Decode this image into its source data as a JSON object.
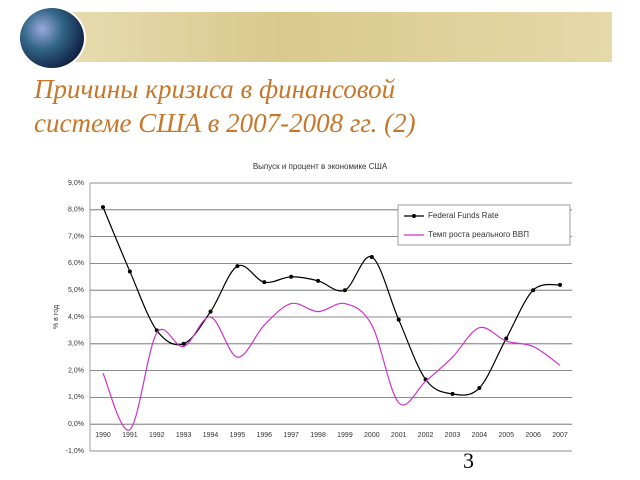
{
  "slide": {
    "title": [
      "Причины кризиса в финансовой",
      "системе США в 2007-2008 гг. (2)"
    ],
    "page_number": "3"
  },
  "chart_data": {
    "type": "line",
    "title": "Выпуск и процент в экономике США",
    "y_label": "% в год",
    "categories": [
      "1990",
      "1991",
      "1992",
      "1993",
      "1994",
      "1995",
      "1996",
      "1997",
      "1998",
      "1999",
      "2000",
      "2001",
      "2002",
      "2003",
      "2004",
      "2005",
      "2006",
      "2007"
    ],
    "series": [
      {
        "name": "Federal Funds Rate",
        "color": "#000000",
        "markers": true,
        "values": [
          8.1,
          5.7,
          3.5,
          3.0,
          4.2,
          5.9,
          5.3,
          5.5,
          5.35,
          5.0,
          6.24,
          3.9,
          1.67,
          1.13,
          1.35,
          3.2,
          5.0,
          5.2
        ]
      },
      {
        "name": "Темп роста реального ВВП",
        "color": "#cc33cc",
        "markers": false,
        "values": [
          1.9,
          -0.2,
          3.4,
          2.9,
          4.0,
          2.5,
          3.7,
          4.5,
          4.2,
          4.5,
          3.7,
          0.8,
          1.6,
          2.5,
          3.6,
          3.1,
          2.9,
          2.2
        ]
      }
    ],
    "ylim": [
      -1,
      9
    ],
    "yticks": [
      {
        "value": -1,
        "label": "-1,0%"
      },
      {
        "value": 0,
        "label": "0,0%"
      },
      {
        "value": 1,
        "label": "1,0%"
      },
      {
        "value": 2,
        "label": "2,0%"
      },
      {
        "value": 3,
        "label": "3,0%"
      },
      {
        "value": 4,
        "label": "4,0%"
      },
      {
        "value": 5,
        "label": "5,0%"
      },
      {
        "value": 6,
        "label": "6,0%"
      },
      {
        "value": 7,
        "label": "7,0%"
      },
      {
        "value": 8,
        "label": "8,0%"
      },
      {
        "value": 9,
        "label": "9,0%"
      }
    ],
    "grid": true,
    "legend": "top-right"
  }
}
